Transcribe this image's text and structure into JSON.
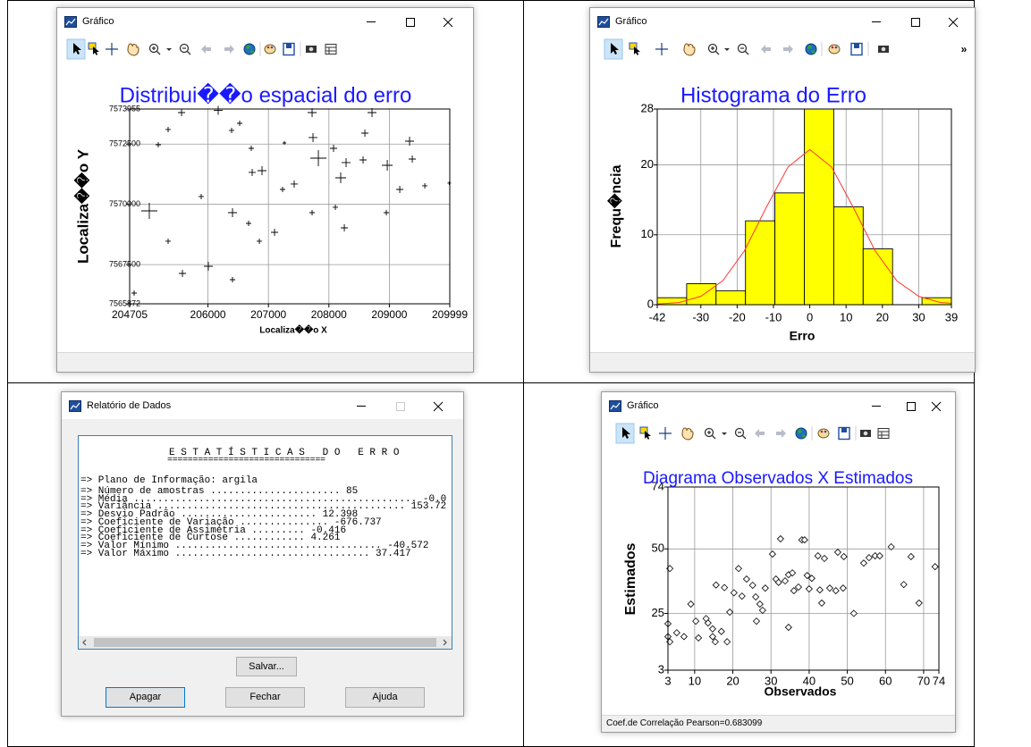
{
  "windows": [
    {
      "title": "Gráfico",
      "chart_data": {
        "type": "scatter",
        "marker": "cross",
        "title": "Distribui��o espacial do erro",
        "title_color": "#1a1aff",
        "x_label": "Localiza��o X",
        "y_label": "Localiza��o Y",
        "color": "#000000",
        "grid": true,
        "xlim": [
          204705,
          209999
        ],
        "ylim": [
          7565872,
          7573955
        ],
        "xticks": [
          204705,
          206000,
          207000,
          208000,
          209000,
          209999
        ],
        "yticks": [
          7565872,
          7567500,
          7570000,
          7572500,
          7573955
        ],
        "x": [
          205563,
          205341,
          205178,
          206169,
          206391,
          206524,
          207722,
          208713,
          208595,
          207737,
          207264,
          206716,
          206731,
          206894,
          207826,
          208077,
          208284,
          208195,
          208565,
          208965,
          209334,
          209379,
          209172,
          209586,
          207426,
          207234,
          205888,
          205030,
          206406,
          206672,
          206850,
          207101,
          207722,
          208107,
          208255,
          205341,
          206006,
          205578,
          204779,
          206406,
          208950,
          209990
        ],
        "values": [
          7573807,
          7573103,
          7572472,
          7573900,
          7573066,
          7573362,
          7573807,
          7573807,
          7572954,
          7572769,
          7572546,
          7572324,
          7571323,
          7571397,
          7571916,
          7572324,
          7571731,
          7571100,
          7571842,
          7571619,
          7572620,
          7571879,
          7570618,
          7570767,
          7570841,
          7570618,
          7570322,
          7569728,
          7569654,
          7569209,
          7568468,
          7568838,
          7569654,
          7569877,
          7569024,
          7568468,
          7567429,
          7567133,
          7566317,
          7566873,
          7569654,
          7570878
        ],
        "sizes": [
          16,
          12,
          12,
          20,
          12,
          12,
          20,
          20,
          16,
          20,
          8,
          12,
          16,
          20,
          36,
          16,
          20,
          24,
          16,
          24,
          20,
          16,
          16,
          12,
          16,
          12,
          12,
          36,
          20,
          12,
          12,
          16,
          12,
          12,
          16,
          12,
          20,
          16,
          12,
          12,
          12,
          8
        ]
      }
    },
    {
      "title": "Gráfico",
      "toolbar_overflow": "»",
      "chart_data": {
        "type": "histogram",
        "title": "Histograma do Erro",
        "title_color": "#1a1aff",
        "x_label": "Erro",
        "y_label": "Frequ�ncia",
        "color": "#ffff00",
        "grid": true,
        "xlim": [
          -42,
          39
        ],
        "ylim": [
          0,
          28
        ],
        "xticks": [
          -42,
          -30,
          -20,
          -10,
          0,
          10,
          20,
          30,
          39
        ],
        "yticks": [
          0,
          10,
          20,
          28
        ],
        "bins": [
          -42,
          -33.9,
          -25.8,
          -17.7,
          -9.6,
          -1.5,
          6.6,
          14.7,
          22.8,
          30.9,
          39
        ],
        "counts": [
          1,
          3,
          2,
          12,
          16,
          28,
          14,
          8,
          0,
          1
        ],
        "curve": {
          "color": "#ff3333",
          "x": [
            -42,
            -36,
            -30,
            -24,
            -18,
            -12,
            -6,
            0,
            6,
            12,
            18,
            24,
            30,
            36,
            39
          ],
          "values": [
            0.1,
            0.3,
            1.2,
            3.4,
            7.7,
            13.9,
            19.7,
            22.2,
            19.7,
            13.9,
            7.7,
            3.4,
            1.2,
            0.3,
            0.2
          ]
        }
      }
    },
    {
      "title": "Relatório de Dados",
      "report": {
        "heading": "E S T A T Í S T I C A S   D O   E R R O",
        "rule": "===============================",
        "info_line": "=> Plano de Informação: argila",
        "lines": [
          "=> Número de amostras ...................... 85",
          "=> Média ................................................ -0.0",
          "=> Variância .......................................... 153.72",
          "=> Desvio Padrão ....................... 12.398",
          "=> Coeficiente de Variação ............... -676.737",
          "=> Coeficiente de Assimetria ......... -0.416",
          "=> Coeficiente de Curtose ............ 4.261",
          "=> Valor Mínimo ................................... -40.572",
          "=> Valor Máximo ................................. 37.417"
        ]
      },
      "buttons": [
        "Salvar...",
        "Apagar",
        "Fechar",
        "Ajuda"
      ]
    },
    {
      "title": "Gráfico",
      "status": "Coef.de Correlação Pearson=0.683099",
      "chart_data": {
        "type": "scatter",
        "marker": "diamond",
        "title": "Diagrama Observados X Estimados",
        "title_color": "#1a1aff",
        "x_label": "Observados",
        "y_label": "Estimados",
        "color": "#000000",
        "grid": true,
        "xlim": [
          3,
          74
        ],
        "ylim": [
          3,
          74
        ],
        "xticks": [
          3,
          10,
          20,
          30,
          40,
          50,
          60,
          70,
          74
        ],
        "yticks": [
          3,
          25,
          50,
          74
        ],
        "x": [
          3.5,
          3,
          3,
          3.5,
          5.3,
          7.2,
          9,
          11,
          10.3,
          13.5,
          13,
          14.7,
          14.7,
          15.4,
          17,
          15.6,
          17.8,
          18.5,
          19.2,
          20.3,
          21.5,
          23.6,
          22.4,
          26,
          26.2,
          25.2,
          27.1,
          27.8,
          28.5,
          30.4,
          32.5,
          31.3,
          32,
          33.7,
          34.6,
          35.6,
          34.6,
          36,
          37.2,
          38.1,
          38.8,
          39.5,
          40.7,
          40,
          42.3,
          42.8,
          43.3,
          44,
          45.4,
          47,
          47.5,
          49.1,
          48.9,
          51.7,
          54.3,
          55.7,
          57.3,
          58.5,
          61.5,
          64.8,
          66.7,
          68.8,
          73
        ],
        "values": [
          42.4,
          21,
          16,
          14,
          17.5,
          16,
          28.6,
          15.5,
          22,
          21.3,
          23,
          16,
          19,
          14,
          18,
          36,
          35,
          14,
          25.5,
          33,
          42.4,
          38.3,
          31.7,
          31.4,
          22,
          35.9,
          28.6,
          26.2,
          34.8,
          48,
          53.9,
          38.3,
          37,
          37.6,
          40,
          40.7,
          19.6,
          33.8,
          35.2,
          53.5,
          53.5,
          39.7,
          38.6,
          34.5,
          47.3,
          34.1,
          29,
          46.3,
          34.8,
          33.8,
          48.7,
          47,
          34.8,
          25,
          44.5,
          46.6,
          47.3,
          47.3,
          50.8,
          36.2,
          47,
          29,
          43.1
        ]
      }
    }
  ]
}
